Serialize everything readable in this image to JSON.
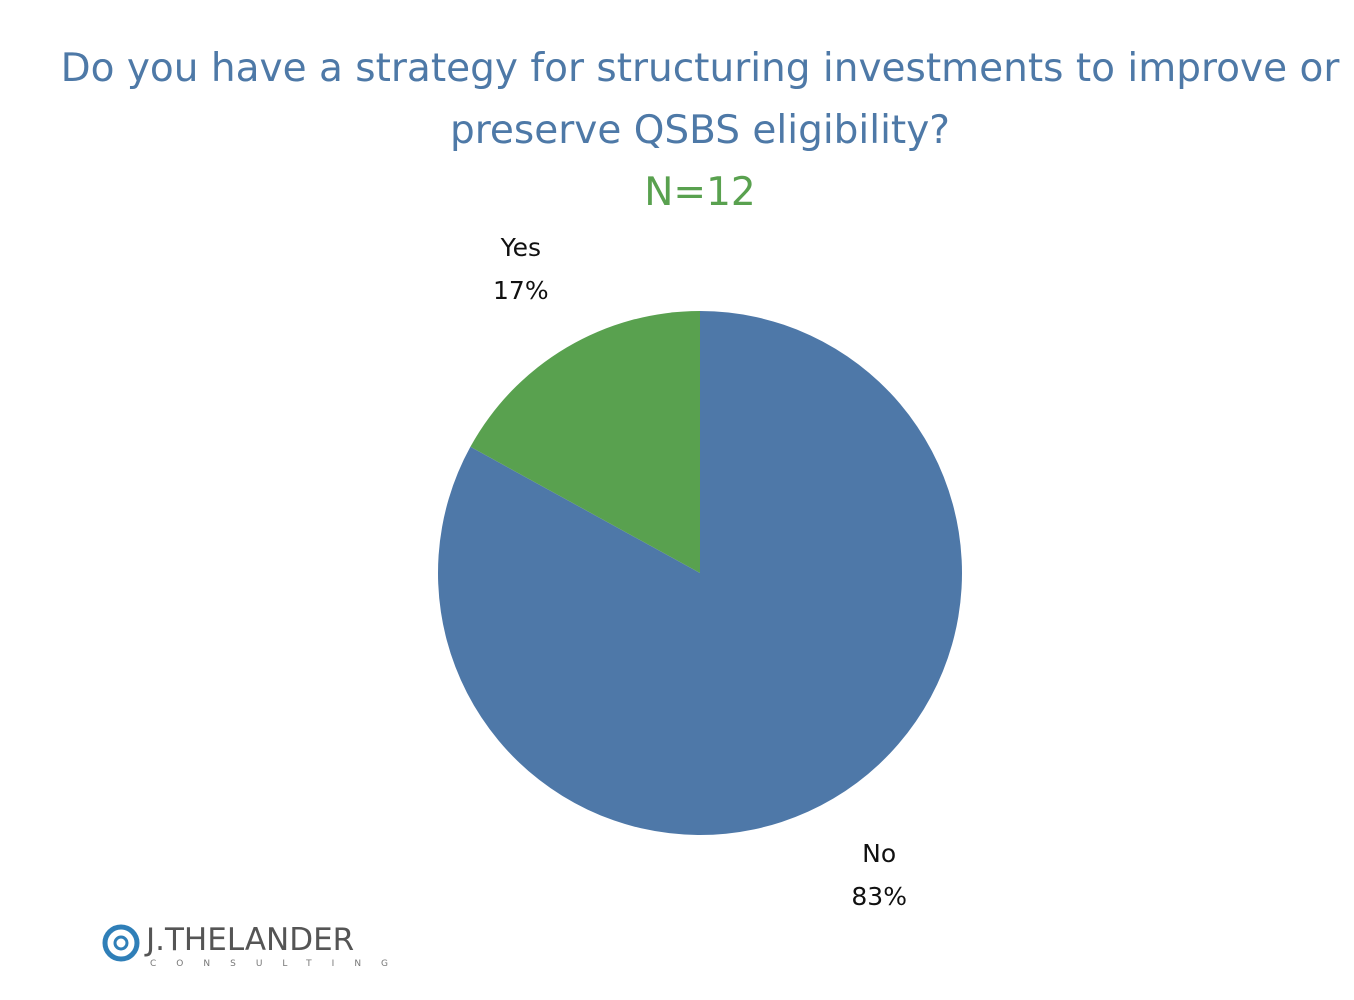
{
  "chart_data": {
    "type": "pie",
    "title": "Do you have a strategy for structuring investments to improve or preserve QSBS eligibility?",
    "subtitle": "N=12",
    "categories": [
      "No",
      "Yes"
    ],
    "values": [
      83,
      17
    ],
    "value_labels": [
      "83%",
      "17%"
    ],
    "colors": [
      "#4e78a8",
      "#59a14f"
    ]
  },
  "logo": {
    "name": "J.THELANDER",
    "tagline": "CONSULTING"
  }
}
